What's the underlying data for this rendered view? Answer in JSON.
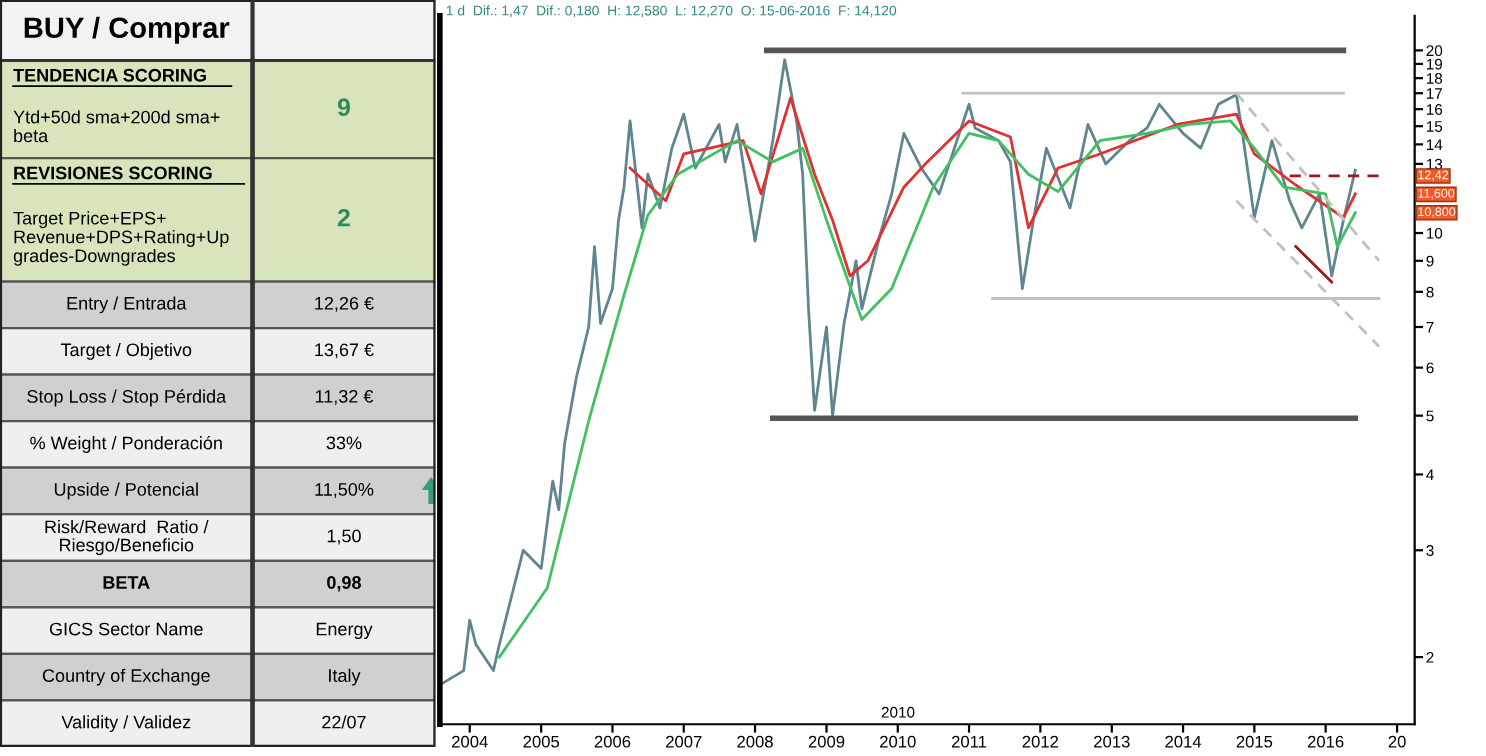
{
  "chart_data": [
    {
      "type": "other",
      "title": "BUY / Comprar",
      "categories": [
        "TENDENCIA SCORING\nYtd+50d sma+200d sma+\nbeta",
        "REVISIONES SCORING\nTarget Price+EPS+\nRevenue+DPS+Rating+Up\ngrades-Downgrades",
        "Entry / Entrada",
        "Target / Objetivo",
        "Stop Loss / Stop Pérdida",
        "% Weight / Ponderación",
        "Upside / Potencial",
        "Risk/Reward  Ratio /\nRiesgo/Beneficio",
        "BETA",
        "GICS Sector Name",
        "Country of Exchange",
        "Validity / Validez"
      ],
      "value_labels": [
        "9",
        "2",
        "12,26 €",
        "13,67 €",
        "11,32 €",
        "33%",
        "11,50%",
        "1,50",
        "0,98",
        "Energy",
        "Italy",
        "22/07"
      ],
      "colors": [
        "#d8e4bc",
        "#d8e4bc",
        "#d0d0d0",
        "#efefef",
        "#d0d0d0",
        "#efefef",
        "#d0d0d0",
        "#efefef",
        "#d0d0d0",
        "#efefef",
        "#d0d0d0",
        "#efefef"
      ]
    },
    {
      "type": "line",
      "log": true,
      "subtitle": "1 d  Dif.: 1,47  Dif.: 0,180  H: 12,580  L: 12,270  O: 15-06-2016  F: 14,120",
      "xlim": [
        "2003-08",
        "2017-04"
      ],
      "xticks": [
        "2004",
        "2005",
        "2006",
        "2007",
        "2008",
        "2009",
        "2010",
        "2011",
        "2012",
        "2013",
        "2014",
        "2015",
        "2016",
        {
          "value": "2017",
          "label": "20"
        }
      ],
      "ylim": [
        1.55,
        22.8
      ],
      "yticks": [
        2,
        3,
        4,
        5,
        6,
        7,
        8,
        9,
        10,
        13,
        14,
        15,
        16,
        17,
        18,
        19,
        20
      ],
      "tick_labels": true,
      "series": [
        {
          "color": "#5f8590",
          "x": [
            "2003-08",
            "2003-12",
            "2004-01",
            "2004-02",
            "2004-05",
            "2004-06",
            "2004-10",
            "2005-01",
            "2005-03",
            "2005-04",
            "2005-05",
            "2005-07",
            "2005-09",
            "2005-10",
            "2005-11",
            "2006-01",
            "2006-02",
            "2006-03",
            "2006-04",
            "2006-06",
            "2006-07",
            "2006-09",
            "2006-11",
            "2007-01",
            "2007-03",
            "2007-07",
            "2007-08",
            "2007-10",
            "2008-01",
            "2008-02",
            "2008-04",
            "2008-06",
            "2008-08",
            "2008-09",
            "2008-10",
            "2008-11",
            "2009-01",
            "2009-02",
            "2009-04",
            "2009-06",
            "2009-07",
            "2009-10",
            "2009-12",
            "2010-02",
            "2010-05",
            "2010-08",
            "2011-01",
            "2011-02",
            "2011-06",
            "2011-08",
            "2011-10",
            "2011-12",
            "2012-02",
            "2012-06",
            "2012-09",
            "2012-12",
            "2013-04",
            "2013-07",
            "2013-09",
            "2014-01",
            "2014-04",
            "2014-07",
            "2014-10",
            "2014-11",
            "2015-01",
            "2015-04",
            "2015-07",
            "2015-09",
            "2015-12",
            "2016-02",
            "2016-04",
            "2016-06"
          ],
          "values": [
            1.8,
            1.9,
            2.3,
            2.1,
            1.9,
            2.1,
            3.0,
            2.8,
            3.9,
            3.5,
            4.5,
            5.8,
            7.0,
            9.5,
            7.1,
            8.1,
            10.5,
            11.9,
            15.3,
            10.2,
            12.5,
            11.0,
            13.8,
            15.7,
            12.8,
            15.1,
            13.1,
            15.1,
            9.7,
            11.0,
            14.2,
            19.3,
            15.3,
            12.5,
            7.5,
            5.1,
            7.0,
            5.0,
            7.1,
            9.0,
            7.5,
            9.9,
            11.6,
            14.6,
            12.8,
            11.6,
            16.3,
            14.9,
            14.2,
            13.1,
            8.1,
            10.7,
            13.8,
            11.0,
            15.1,
            13.0,
            14.2,
            14.9,
            16.3,
            14.6,
            13.8,
            16.3,
            16.9,
            14.6,
            10.6,
            14.2,
            11.3,
            10.2,
            11.6,
            8.5,
            10.5,
            12.7
          ]
        },
        {
          "color": "#e03030",
          "x": [
            "2006-04",
            "2006-10",
            "2007-01",
            "2007-11",
            "2008-02",
            "2008-07",
            "2008-11",
            "2009-02",
            "2009-05",
            "2009-08",
            "2010-02",
            "2010-06",
            "2011-01",
            "2011-08",
            "2011-11",
            "2012-04",
            "2012-11",
            "2013-12",
            "2014-10",
            "2015-01",
            "2015-08",
            "2016-04",
            "2016-06"
          ],
          "values": [
            12.8,
            11.3,
            13.5,
            14.2,
            11.6,
            16.7,
            12.5,
            10.5,
            8.5,
            9.0,
            11.9,
            13.1,
            15.3,
            14.4,
            10.2,
            12.8,
            13.5,
            15.1,
            15.7,
            13.5,
            12.0,
            10.6,
            11.6
          ]
        },
        {
          "color": "#40c060",
          "x": [
            "2004-06",
            "2005-02",
            "2005-09",
            "2006-03",
            "2006-07",
            "2006-12",
            "2007-10",
            "2008-04",
            "2008-09",
            "2009-01",
            "2009-07",
            "2009-12",
            "2010-07",
            "2011-01",
            "2011-06",
            "2011-11",
            "2012-04",
            "2012-11",
            "2013-07",
            "2014-02",
            "2014-09",
            "2015-01",
            "2015-06",
            "2016-01",
            "2016-03",
            "2016-06"
          ],
          "values": [
            2.0,
            2.6,
            4.9,
            7.9,
            10.7,
            12.5,
            14.2,
            13.1,
            13.8,
            10.5,
            7.2,
            8.1,
            11.9,
            14.6,
            14.2,
            12.5,
            11.7,
            14.2,
            14.6,
            15.1,
            15.3,
            13.8,
            11.9,
            11.6,
            9.5,
            10.8
          ]
        },
        {
          "color": "#555555",
          "x": [
            "2008-03",
            "2016-04"
          ],
          "values": [
            20,
            20
          ]
        },
        {
          "color": "#555555",
          "x": [
            "2008-04",
            "2016-06"
          ],
          "values": [
            4.95,
            4.95
          ]
        },
        {
          "color": "#c0c0c0",
          "x": [
            "2010-12",
            "2016-04"
          ],
          "values": [
            17,
            17
          ]
        },
        {
          "color": "#c0c0c0",
          "x": [
            "2011-05",
            "2016-10"
          ],
          "values": [
            7.8,
            7.8
          ]
        },
        {
          "color": "#c0c0c0",
          "line_style": "dashed",
          "x": [
            "2014-10",
            "2016-10"
          ],
          "values": [
            17.0,
            9.0
          ]
        },
        {
          "color": "#c0c0c0",
          "line_style": "dashed",
          "x": [
            "2014-10",
            "2016-10"
          ],
          "values": [
            11.3,
            6.5
          ]
        },
        {
          "color": "#a01818",
          "x": [
            "2015-08",
            "2016-02"
          ],
          "values": [
            9.5,
            8.3
          ]
        },
        {
          "color": "#a01818",
          "line_style": "dashed",
          "x": [
            "2015-07",
            "2016-10"
          ],
          "values": [
            12.42,
            12.42
          ]
        }
      ],
      "annotations": [
        "12,42",
        "11,600",
        "10,800",
        "2010"
      ]
    }
  ]
}
